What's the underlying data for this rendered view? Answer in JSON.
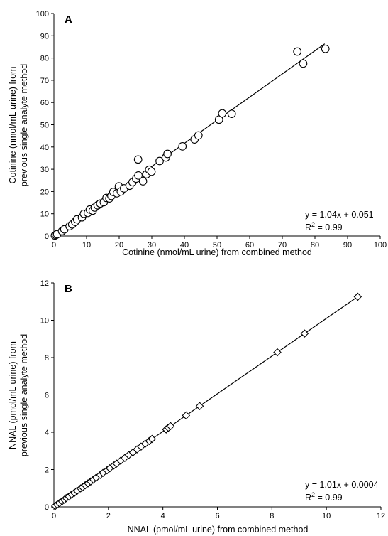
{
  "chart_data": [
    {
      "type": "scatter",
      "panel_label": "A",
      "xlabel": "Cotinine (nmol/mL urine) from combined method",
      "ylabel_lines": [
        "Cotinine (nmol/mL urine) from",
        "previous single analyte method"
      ],
      "xlim": [
        0,
        100
      ],
      "ylim": [
        0,
        100
      ],
      "xticks": [
        0,
        10,
        20,
        30,
        40,
        50,
        60,
        70,
        80,
        90,
        100
      ],
      "yticks": [
        0,
        10,
        20,
        30,
        40,
        50,
        60,
        70,
        80,
        90,
        100
      ],
      "marker": "circle",
      "equation": "y = 1.04x + 0.051",
      "r2_label": "R",
      "r2_sup": "2",
      "r2_value": " = 0.99",
      "fit": {
        "slope": 1.04,
        "intercept": 0.051,
        "x_range": [
          0,
          83
        ]
      },
      "points": [
        [
          0.3,
          0.2
        ],
        [
          0.6,
          0.5
        ],
        [
          1.0,
          0.8
        ],
        [
          2.5,
          2.2
        ],
        [
          3.2,
          3.0
        ],
        [
          4.8,
          4.4
        ],
        [
          5.6,
          5.2
        ],
        [
          6.5,
          6.4
        ],
        [
          7.1,
          7.5
        ],
        [
          8.6,
          8.4
        ],
        [
          9.2,
          10.0
        ],
        [
          10.4,
          10.4
        ],
        [
          11.0,
          11.9
        ],
        [
          11.9,
          11.4
        ],
        [
          12.5,
          12.8
        ],
        [
          13.4,
          13.8
        ],
        [
          14.2,
          14.6
        ],
        [
          15.3,
          15.2
        ],
        [
          16.1,
          17.1
        ],
        [
          17.0,
          16.9
        ],
        [
          17.6,
          18.0
        ],
        [
          18.2,
          19.8
        ],
        [
          19.3,
          19.2
        ],
        [
          19.9,
          22.3
        ],
        [
          20.5,
          20.0
        ],
        [
          21.5,
          21.4
        ],
        [
          23.2,
          22.6
        ],
        [
          24.1,
          24.2
        ],
        [
          25.2,
          25.8
        ],
        [
          25.9,
          27.2
        ],
        [
          25.8,
          34.4
        ],
        [
          27.3,
          24.6
        ],
        [
          28.4,
          27.8
        ],
        [
          29.2,
          29.8
        ],
        [
          29.9,
          28.9
        ],
        [
          32.4,
          33.7
        ],
        [
          34.3,
          35.3
        ],
        [
          34.8,
          36.9
        ],
        [
          39.4,
          40.3
        ],
        [
          43.1,
          43.4
        ],
        [
          44.3,
          45.2
        ],
        [
          50.6,
          52.3
        ],
        [
          51.6,
          55.1
        ],
        [
          54.5,
          54.9
        ],
        [
          74.6,
          82.9
        ],
        [
          76.4,
          77.5
        ],
        [
          83.2,
          84.1
        ]
      ]
    },
    {
      "type": "scatter",
      "panel_label": "B",
      "xlabel": "NNAL (pmol/mL urine) from combined method",
      "ylabel_lines": [
        "NNAL (pmol/mL urine) from",
        "previous single analyte method"
      ],
      "xlim": [
        0,
        12
      ],
      "ylim": [
        0,
        12
      ],
      "xticks": [
        0,
        2,
        4,
        6,
        8,
        10,
        12
      ],
      "yticks": [
        0,
        2,
        4,
        6,
        8,
        10,
        12
      ],
      "marker": "diamond",
      "equation": "y = 1.01x + 0.0004",
      "r2_label": "R",
      "r2_sup": "2",
      "r2_value": " = 0.99",
      "fit": {
        "slope": 1.01,
        "intercept": 0.0004,
        "x_range": [
          0,
          11.15
        ]
      },
      "points": [
        [
          0.05,
          0.05
        ],
        [
          0.12,
          0.12
        ],
        [
          0.2,
          0.2
        ],
        [
          0.3,
          0.3
        ],
        [
          0.38,
          0.38
        ],
        [
          0.45,
          0.47
        ],
        [
          0.55,
          0.55
        ],
        [
          0.65,
          0.66
        ],
        [
          0.75,
          0.75
        ],
        [
          0.85,
          0.86
        ],
        [
          0.98,
          0.99
        ],
        [
          1.05,
          1.05
        ],
        [
          1.15,
          1.16
        ],
        [
          1.25,
          1.26
        ],
        [
          1.35,
          1.36
        ],
        [
          1.45,
          1.46
        ],
        [
          1.55,
          1.56
        ],
        [
          1.7,
          1.71
        ],
        [
          1.8,
          1.82
        ],
        [
          1.95,
          1.96
        ],
        [
          2.05,
          2.07
        ],
        [
          2.2,
          2.22
        ],
        [
          2.3,
          2.32
        ],
        [
          2.45,
          2.47
        ],
        [
          2.6,
          2.62
        ],
        [
          2.75,
          2.78
        ],
        [
          2.9,
          2.92
        ],
        [
          3.05,
          3.08
        ],
        [
          3.2,
          3.23
        ],
        [
          3.35,
          3.38
        ],
        [
          3.5,
          3.53
        ],
        [
          3.6,
          3.64
        ],
        [
          4.12,
          4.15
        ],
        [
          4.2,
          4.24
        ],
        [
          4.28,
          4.33
        ],
        [
          4.85,
          4.9
        ],
        [
          5.35,
          5.4
        ],
        [
          8.2,
          8.28
        ],
        [
          9.2,
          9.29
        ],
        [
          11.15,
          11.26
        ]
      ]
    }
  ]
}
